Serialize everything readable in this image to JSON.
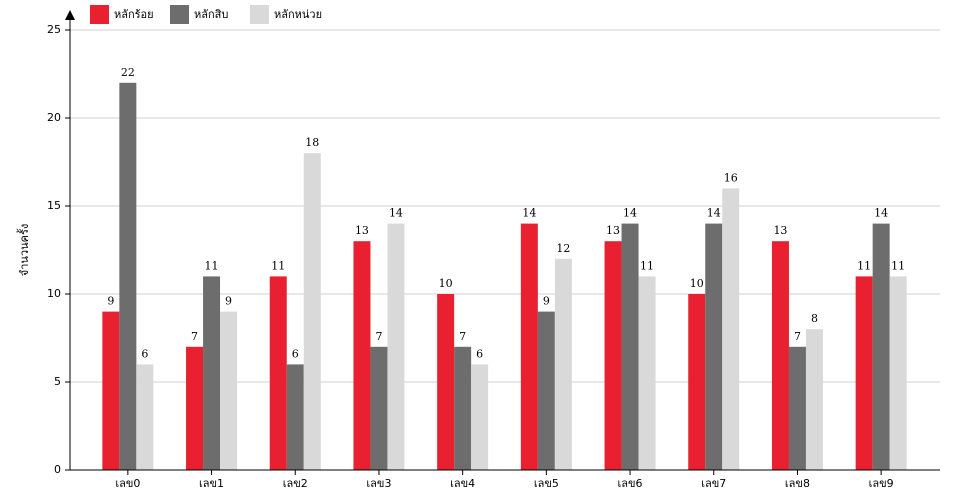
{
  "chart_data": {
    "type": "bar",
    "y_label": "จำนวนครั้ง",
    "categories": [
      "เลข0",
      "เลข1",
      "เลข2",
      "เลข3",
      "เลข4",
      "เลข5",
      "เลข6",
      "เลข7",
      "เลข8",
      "เลข9"
    ],
    "series": [
      {
        "name": "หลักร้อย",
        "color": "#e8202f",
        "values": [
          9,
          7,
          11,
          13,
          10,
          14,
          13,
          10,
          13,
          11
        ]
      },
      {
        "name": "หลักสิบ",
        "color": "#6d6d6d",
        "values": [
          22,
          11,
          6,
          7,
          7,
          9,
          14,
          14,
          7,
          14
        ]
      },
      {
        "name": "หลักหน่วย",
        "color": "#d9d9d9",
        "values": [
          6,
          9,
          18,
          14,
          6,
          12,
          11,
          16,
          8,
          11
        ]
      }
    ],
    "ylim": [
      0,
      25
    ],
    "yticks": [
      0,
      5,
      10,
      15,
      20,
      25
    ],
    "grid": true,
    "legend": "top-left",
    "value_labels_shown": true
  }
}
